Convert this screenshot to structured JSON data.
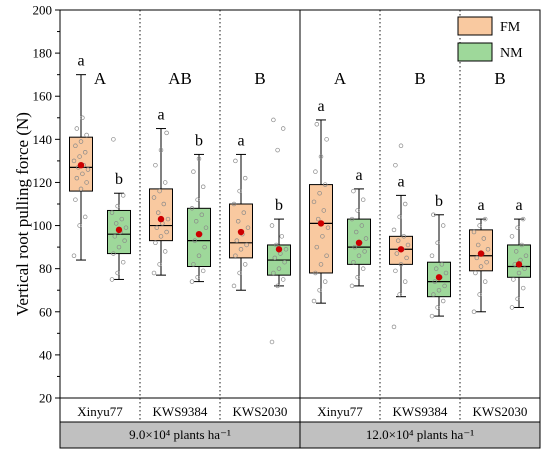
{
  "chart_data": {
    "type": "box",
    "ylabel": "Vertical root pulling force (N)",
    "ylim": [
      20,
      200
    ],
    "yticks": [
      20,
      40,
      60,
      80,
      100,
      120,
      140,
      160,
      180,
      200
    ],
    "legend": {
      "placement": "top-right",
      "entries": [
        {
          "name": "FM",
          "color": "#F9C9A0"
        },
        {
          "name": "NM",
          "color": "#9ED89A"
        }
      ]
    },
    "colors": {
      "FM": "#F9C9A0",
      "NM": "#9ED89A",
      "mean": "#CC0000",
      "footer": "#C0C0C0"
    },
    "groups": [
      {
        "label": "9.0×10⁴ plants ha⁻¹",
        "categories": [
          {
            "name": "Xinyu77",
            "group_letter": "A",
            "boxes": [
              {
                "series": "FM",
                "min": 84,
                "q1": 116,
                "median": 127,
                "q3": 141,
                "max": 170,
                "mean": 128,
                "letter": "a",
                "points": [
                  86,
                  100,
                  104,
                  112,
                  117,
                  120,
                  122,
                  124,
                  126,
                  127,
                  128,
                  130,
                  132,
                  134,
                  137,
                  139,
                  142,
                  145,
                  150
                ]
              },
              {
                "series": "NM",
                "min": 75,
                "q1": 87,
                "median": 96,
                "q3": 107,
                "max": 115,
                "mean": 98,
                "letter": "b",
                "points": [
                  75,
                  78,
                  83,
                  87,
                  90,
                  93,
                  95,
                  97,
                  99,
                  101,
                  103,
                  106,
                  109,
                  114,
                  140
                ]
              }
            ]
          },
          {
            "name": "KWS9384",
            "group_letter": "AB",
            "boxes": [
              {
                "series": "FM",
                "min": 77,
                "q1": 93,
                "median": 100,
                "q3": 117,
                "max": 145,
                "mean": 103,
                "letter": "a",
                "points": [
                  78,
                  82,
                  88,
                  92,
                  95,
                  97,
                  99,
                  101,
                  103,
                  106,
                  110,
                  113,
                  116,
                  120,
                  128,
                  135,
                  143
                ]
              },
              {
                "series": "NM",
                "min": 74,
                "q1": 81,
                "median": 93,
                "q3": 108,
                "max": 133,
                "mean": 96,
                "letter": "b",
                "points": [
                  74,
                  76,
                  79,
                  82,
                  86,
                  90,
                  93,
                  96,
                  99,
                  102,
                  105,
                  108,
                  112,
                  118,
                  125,
                  131
                ]
              }
            ]
          },
          {
            "name": "KWS2030",
            "group_letter": "B",
            "boxes": [
              {
                "series": "FM",
                "min": 70,
                "q1": 85,
                "median": 92,
                "q3": 110,
                "max": 133,
                "mean": 97,
                "letter": "a",
                "points": [
                  72,
                  78,
                  82,
                  86,
                  89,
                  91,
                  93,
                  96,
                  99,
                  102,
                  106,
                  110,
                  116,
                  122,
                  130
                ]
              },
              {
                "series": "NM",
                "min": 72,
                "q1": 77,
                "median": 84,
                "q3": 91,
                "max": 103,
                "mean": 89,
                "letter": "b",
                "points": [
                  46,
                  72,
                  75,
                  78,
                  80,
                  83,
                  85,
                  87,
                  89,
                  91,
                  95,
                  100,
                  135,
                  145,
                  149
                ]
              }
            ]
          }
        ]
      },
      {
        "label": "12.0×10⁴ plants ha⁻¹",
        "categories": [
          {
            "name": "Xinyu77",
            "group_letter": "A",
            "boxes": [
              {
                "series": "FM",
                "min": 64,
                "q1": 78,
                "median": 101,
                "q3": 119,
                "max": 149,
                "mean": 101,
                "letter": "a",
                "points": [
                  65,
                  70,
                  74,
                  78,
                  82,
                  86,
                  90,
                  95,
                  99,
                  103,
                  107,
                  111,
                  115,
                  119,
                  125,
                  132,
                  140,
                  147
                ]
              },
              {
                "series": "NM",
                "min": 72,
                "q1": 82,
                "median": 90,
                "q3": 103,
                "max": 117,
                "mean": 92,
                "letter": "a",
                "points": [
                  72,
                  76,
                  80,
                  83,
                  86,
                  88,
                  90,
                  92,
                  94,
                  97,
                  100,
                  103,
                  107,
                  112,
                  116
                ]
              }
            ]
          },
          {
            "name": "KWS9384",
            "group_letter": "B",
            "boxes": [
              {
                "series": "FM",
                "min": 67,
                "q1": 82,
                "median": 89,
                "q3": 95,
                "max": 114,
                "mean": 89,
                "letter": "a",
                "points": [
                  53,
                  68,
                  74,
                  79,
                  82,
                  85,
                  87,
                  89,
                  91,
                  93,
                  95,
                  98,
                  104,
                  110,
                  128,
                  137
                ]
              },
              {
                "series": "NM",
                "min": 58,
                "q1": 67,
                "median": 74,
                "q3": 83,
                "max": 105,
                "mean": 76,
                "letter": "b",
                "points": [
                  58,
                  62,
                  65,
                  68,
                  70,
                  72,
                  74,
                  76,
                  78,
                  80,
                  82,
                  86,
                  92,
                  100,
                  105
                ]
              }
            ]
          },
          {
            "name": "KWS2030",
            "group_letter": "B",
            "boxes": [
              {
                "series": "FM",
                "min": 60,
                "q1": 79,
                "median": 86,
                "q3": 98,
                "max": 103,
                "mean": 87,
                "letter": "a",
                "points": [
                  60,
                  68,
                  74,
                  78,
                  81,
                  83,
                  85,
                  87,
                  89,
                  91,
                  94,
                  97,
                  100,
                  103
                ]
              },
              {
                "series": "NM",
                "min": 62,
                "q1": 76,
                "median": 81,
                "q3": 91,
                "max": 103,
                "mean": 82,
                "letter": "a",
                "points": [
                  62,
                  66,
                  71,
                  75,
                  78,
                  80,
                  82,
                  84,
                  86,
                  88,
                  91,
                  95,
                  99,
                  103
                ]
              }
            ]
          }
        ]
      }
    ]
  }
}
